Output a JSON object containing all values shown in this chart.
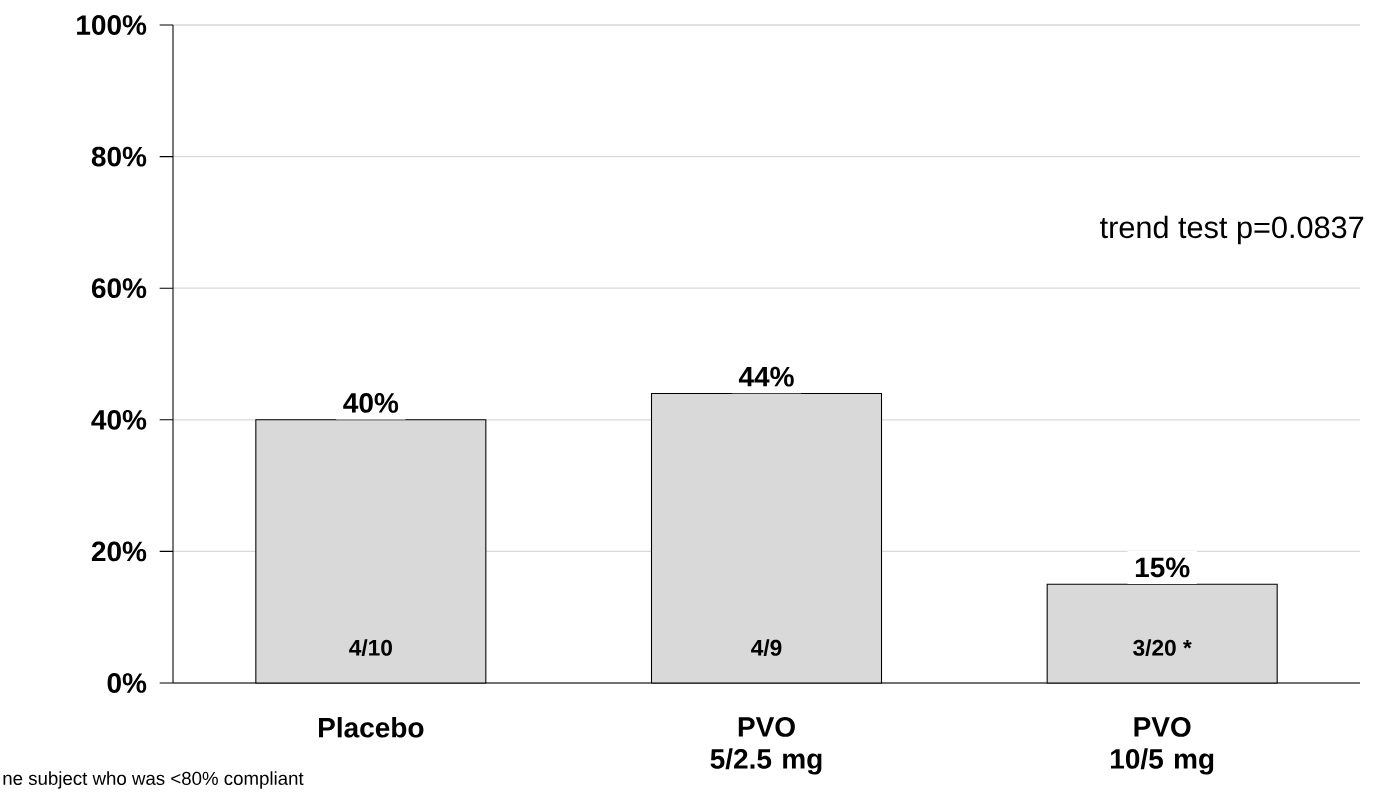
{
  "chart_data": {
    "type": "bar",
    "categories": [
      "Placebo",
      "PVO 5/2.5 mg",
      "PVO 10/5 mg"
    ],
    "values": [
      40,
      44,
      15
    ],
    "value_labels": [
      "40%",
      "44%",
      "15%"
    ],
    "color": "#d9d9d9",
    "ylim": [
      0,
      100
    ],
    "yticks": [
      {
        "value": 0,
        "label": "0%"
      },
      {
        "value": 20,
        "label": "20%"
      },
      {
        "value": 40,
        "label": "40%"
      },
      {
        "value": 60,
        "label": "60%"
      },
      {
        "value": 80,
        "label": "80%"
      },
      {
        "value": 100,
        "label": "100%"
      }
    ],
    "grid": "y",
    "annotations": [
      "4/10",
      "4/9",
      "3/20 *",
      "trend test p=0.0837",
      "ne subject who was <80% compliant"
    ]
  }
}
